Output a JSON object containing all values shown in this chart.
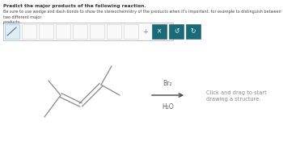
{
  "bg_color": "#ffffff",
  "title_line1": "Predict the major products of the following reaction.",
  "title_line2": "Be sure to use wedge and dash bonds to show the stereochemistry of the products when it’s important, for example to distinguish between two different major products.",
  "reagent_above": "Br₂",
  "reagent_below": "H₂O",
  "click_text": "Click and drag to start\ndrawing a structure.",
  "toolbar_bg": "#f8f8f8",
  "toolbar_border": "#cccccc",
  "toolbar_button_teal": "#1a6b7a",
  "toolbar_button_teal_light": "#e8f4f5",
  "arrow_color": "#444444",
  "text_color": "#666666",
  "mol_color": "#888888",
  "click_color": "#888888"
}
